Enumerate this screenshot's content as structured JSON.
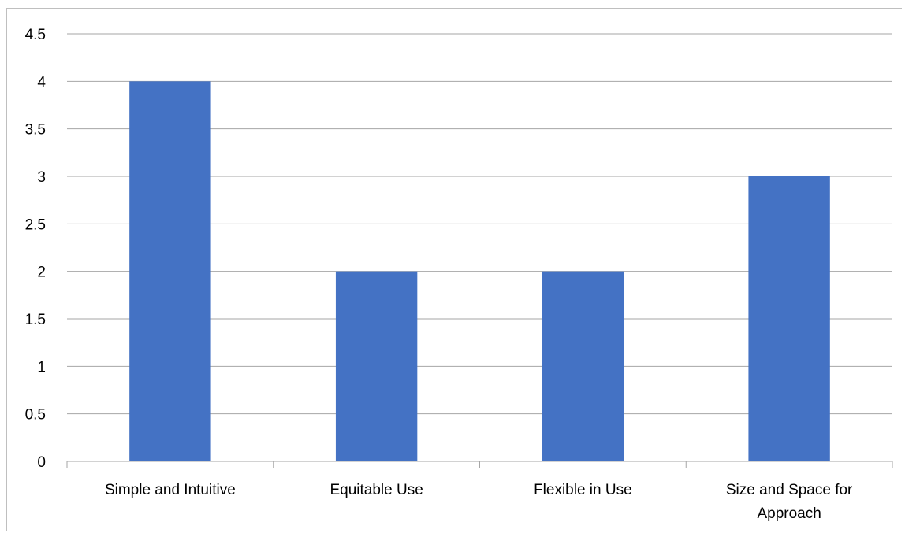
{
  "chart_data": {
    "type": "bar",
    "categories": [
      "Simple and Intuitive",
      "Equitable Use",
      "Flexible in Use",
      "Size and Space for Approach"
    ],
    "category_lines": [
      [
        "Simple and Intuitive"
      ],
      [
        "Equitable Use"
      ],
      [
        "Flexible in Use"
      ],
      [
        "Size and Space for",
        "Approach"
      ]
    ],
    "values": [
      4,
      2,
      2,
      3
    ],
    "title": "",
    "xlabel": "",
    "ylabel": "",
    "ylim": [
      0,
      4.5
    ],
    "yticks": [
      0,
      0.5,
      1,
      1.5,
      2,
      2.5,
      3,
      3.5,
      4,
      4.5
    ],
    "ytick_labels": [
      "0",
      "0.5",
      "1",
      "1.5",
      "2",
      "2.5",
      "3",
      "3.5",
      "4",
      "4.5"
    ],
    "grid": true,
    "legend": "none",
    "colors": {
      "bar": "#4472c4",
      "grid": "#a6a6a6",
      "axis": "#a6a6a6"
    }
  }
}
